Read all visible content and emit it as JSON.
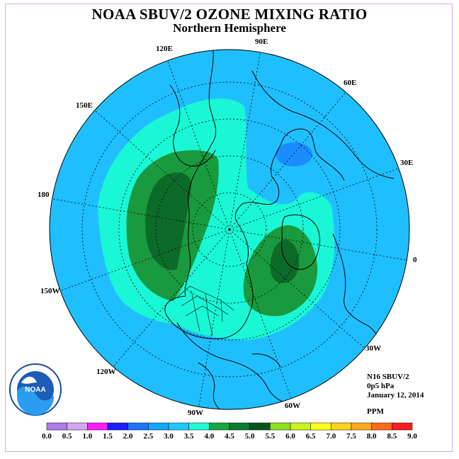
{
  "title": "NOAA SBUV/2 OZONE MIXING RATIO",
  "subtitle": "Northern Hemisphere",
  "info": {
    "instrument": "N16 SBUV/2",
    "pressure": "0p5 hPa",
    "date": "January 12, 2014",
    "units": "PPM"
  },
  "longitude_labels": [
    "90E",
    "60E",
    "30E",
    "0",
    "30W",
    "60W",
    "90W",
    "120W",
    "150W",
    "180",
    "150E",
    "120E"
  ],
  "colorbar": {
    "ticks": [
      "0.0",
      "0.5",
      "1.0",
      "1.5",
      "2.0",
      "2.5",
      "3.0",
      "3.5",
      "4.0",
      "4.5",
      "5.0",
      "5.5",
      "6.0",
      "6.5",
      "7.0",
      "7.5",
      "8.0",
      "8.5",
      "9.0"
    ],
    "colors": [
      "#b07ae8",
      "#d4a6f0",
      "#ff1cff",
      "#1c1cff",
      "#1c74ff",
      "#12a6ff",
      "#1cc8ff",
      "#1cffd6",
      "#15a844",
      "#0d7a2e",
      "#06551f",
      "#8ee21c",
      "#c8f51c",
      "#ffff1c",
      "#ffd21c",
      "#ffa81c",
      "#ff6a1c",
      "#ff1c1c",
      "#8b5a3c"
    ]
  },
  "colors": {
    "background_field": "#1fbfff",
    "ring_3_5": "#19f7d6",
    "ring_4_0": "#1a9a3e",
    "core_4_5": "#0d6b2a",
    "low_2_5": "#1a8cff"
  },
  "logo_text": "NOAA"
}
